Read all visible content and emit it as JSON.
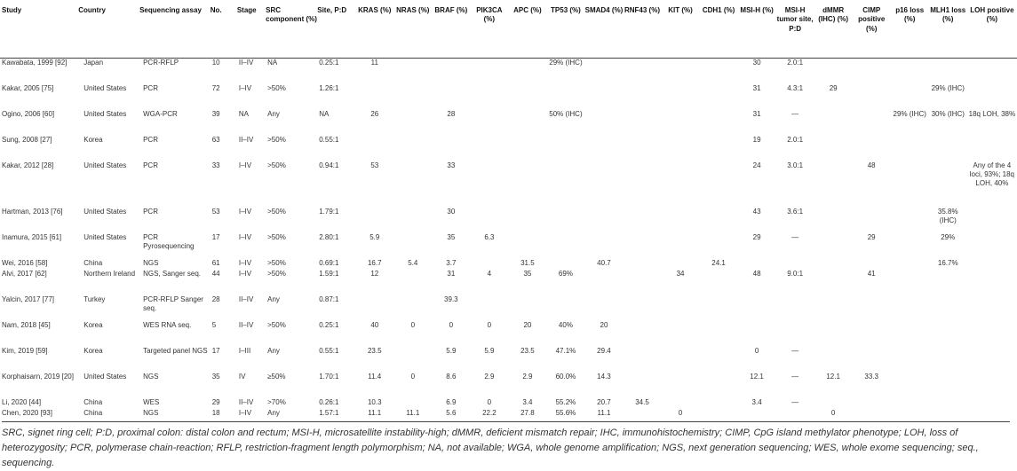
{
  "headers": [
    "Study",
    "Country",
    "Sequencing assay",
    "No.",
    "Stage",
    "SRC component (%)",
    "Site, P:D",
    "KRAS (%)",
    "NRAS (%)",
    "BRAF (%)",
    "PIK3CA (%)",
    "APC (%)",
    "TP53 (%)",
    "SMAD4 (%)",
    "RNF43 (%)",
    "KIT (%)",
    "CDH1 (%)",
    "MSI-H (%)",
    "MSI-H tumor site, P:D",
    "dMMR (IHC) (%)",
    "CIMP positive (%)",
    "p16 loss (%)",
    "MLH1 loss (%)",
    "LOH positive (%)"
  ],
  "rows": [
    [
      "Kawabata, 1999 [92]",
      "Japan",
      "PCR-RFLP",
      "10",
      "II–IV",
      "NA",
      "0.25:1",
      "11",
      "",
      "",
      "",
      "",
      "29% (IHC)",
      "",
      "",
      "",
      "",
      "30",
      "2.0:1",
      "",
      "",
      "",
      "",
      ""
    ],
    [
      "Kakar, 2005 [75]",
      "United States",
      "PCR",
      "72",
      "I–IV",
      ">50%",
      "1.26:1",
      "",
      "",
      "",
      "",
      "",
      "",
      "",
      "",
      "",
      "",
      "31",
      "4.3:1",
      "29",
      "",
      "",
      "29% (IHC)",
      ""
    ],
    [
      "Ogino, 2006 [60]",
      "United States",
      "WGA-PCR",
      "39",
      "NA",
      "Any",
      "NA",
      "26",
      "",
      "28",
      "",
      "",
      "50% (IHC)",
      "",
      "",
      "",
      "",
      "31",
      "—",
      "",
      "",
      "29% (IHC)",
      "30% (IHC)",
      "18q LOH, 38%"
    ],
    [
      "Sung, 2008 [27]",
      "Korea",
      "PCR",
      "63",
      "II–IV",
      ">50%",
      "0.55:1",
      "",
      "",
      "",
      "",
      "",
      "",
      "",
      "",
      "",
      "",
      "19",
      "2.0:1",
      "",
      "",
      "",
      "",
      ""
    ],
    [
      "Kakar, 2012 [28]",
      "United States",
      "PCR",
      "33",
      "I–IV",
      ">50%",
      "0.94:1",
      "53",
      "",
      "33",
      "",
      "",
      "",
      "",
      "",
      "",
      "",
      "24",
      "3.0:1",
      "",
      "48",
      "",
      "",
      "Any of the 4 loci, 93%; 18q LOH, 40%"
    ],
    [
      "Hartman, 2013 [76]",
      "United States",
      "PCR",
      "53",
      "I–IV",
      ">50%",
      "1.79:1",
      "",
      "",
      "30",
      "",
      "",
      "",
      "",
      "",
      "",
      "",
      "43",
      "3.6:1",
      "",
      "",
      "",
      "35.8% (IHC)",
      ""
    ],
    [
      "Inamura, 2015 [61]",
      "United States",
      "PCR Pyrosequencing",
      "17",
      "I–IV",
      ">50%",
      "2.80:1",
      "5.9",
      "",
      "35",
      "6.3",
      "",
      "",
      "",
      "",
      "",
      "",
      "29",
      "—",
      "",
      "29",
      "",
      "29%",
      ""
    ],
    [
      "Wei, 2016 [58]",
      "China",
      "NGS",
      "61",
      "I–IV",
      ">50%",
      "0.69:1",
      "16.7",
      "5.4",
      "3.7",
      "",
      "31.5",
      "",
      "40.7",
      "",
      "",
      "24.1",
      "",
      "",
      "",
      "",
      "",
      "16.7%",
      ""
    ],
    [
      "Alvi, 2017 [62]",
      "Northern Ireland",
      "NGS, Sanger seq.",
      "44",
      "I–IV",
      ">50%",
      "1.59:1",
      "12",
      "",
      "31",
      "4",
      "35",
      "69%",
      "",
      "",
      "34",
      "",
      "48",
      "9.0:1",
      "",
      "41",
      "",
      "",
      ""
    ],
    [
      "Yalcin, 2017 [77]",
      "Turkey",
      "PCR-RFLP Sanger seq.",
      "28",
      "II–IV",
      "Any",
      "0.87:1",
      "",
      "",
      "39.3",
      "",
      "",
      "",
      "",
      "",
      "",
      "",
      "",
      "",
      "",
      "",
      "",
      "",
      ""
    ],
    [
      "Nam, 2018 [45]",
      "Korea",
      "WES RNA seq.",
      "5",
      "II–IV",
      ">50%",
      "0.25:1",
      "40",
      "0",
      "0",
      "0",
      "20",
      "40%",
      "20",
      "",
      "",
      "",
      "",
      "",
      "",
      "",
      "",
      "",
      ""
    ],
    [
      "Kim, 2019 [59]",
      "Korea",
      "Targeted panel NGS",
      "17",
      "I–III",
      "Any",
      "0.55:1",
      "23.5",
      "",
      "5.9",
      "5.9",
      "23.5",
      "47.1%",
      "29.4",
      "",
      "",
      "",
      "0",
      "—",
      "",
      "",
      "",
      "",
      ""
    ],
    [
      "Korphaisarn, 2019 [20]",
      "United States",
      "NGS",
      "35",
      "IV",
      "≥50%",
      "1.70:1",
      "11.4",
      "0",
      "8.6",
      "2.9",
      "2.9",
      "60.0%",
      "14.3",
      "",
      "",
      "",
      "12.1",
      "—",
      "12.1",
      "33.3",
      "",
      "",
      ""
    ],
    [
      "Li, 2020 [44]",
      "China",
      "WES",
      "29",
      "II–IV",
      ">70%",
      "0.26:1",
      "10.3",
      "",
      "6.9",
      "0",
      "3.4",
      "55.2%",
      "20.7",
      "34.5",
      "",
      "",
      "3.4",
      "—",
      "",
      "",
      "",
      "",
      ""
    ],
    [
      "Chen, 2020 [93]",
      "China",
      "NGS",
      "18",
      "I–IV",
      "Any",
      "1.57:1",
      "11.1",
      "11.1",
      "5.6",
      "22.2",
      "27.8",
      "55.6%",
      "11.1",
      "",
      "0",
      "",
      "",
      "",
      "0",
      "",
      "",
      "",
      ""
    ]
  ],
  "footnote": "SRC, signet ring cell; P:D, proximal colon: distal colon and rectum; MSI-H, microsatellite instability-high; dMMR, deficient mismatch repair; IHC, immunohistochemistry; CIMP, CpG island methylator phenotype; LOH, loss of heterozygosity; PCR, polymerase chain-reaction; RFLP, restriction-fragment length polymorphism; NA, not available; WGA, whole genome amplification; NGS, next generation sequencing; WES, whole exome sequencing; seq., sequencing."
}
